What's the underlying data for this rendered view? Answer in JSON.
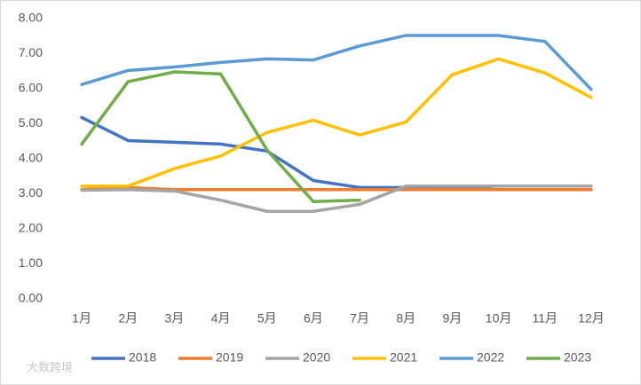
{
  "chart_data": {
    "type": "line",
    "categories": [
      "1月",
      "2月",
      "3月",
      "4月",
      "5月",
      "6月",
      "7月",
      "8月",
      "9月",
      "10月",
      "11月",
      "12月"
    ],
    "series": [
      {
        "name": "2018",
        "color": "#4472c4",
        "values": [
          5.18,
          4.52,
          4.47,
          4.42,
          4.22,
          3.38,
          3.18,
          3.18,
          3.18,
          3.12,
          3.12,
          3.12
        ]
      },
      {
        "name": "2019",
        "color": "#ed7d31",
        "values": [
          3.12,
          3.18,
          3.12,
          3.12,
          3.12,
          3.12,
          3.12,
          3.12,
          3.12,
          3.12,
          3.12,
          3.12
        ]
      },
      {
        "name": "2020",
        "color": "#a5a5a5",
        "values": [
          3.1,
          3.12,
          3.08,
          2.82,
          2.5,
          2.5,
          2.7,
          3.22,
          3.22,
          3.22,
          3.22,
          3.22
        ]
      },
      {
        "name": "2021",
        "color": "#ffc000",
        "values": [
          3.22,
          3.22,
          3.72,
          4.08,
          4.75,
          5.1,
          4.68,
          5.05,
          6.4,
          6.85,
          6.45,
          5.75
        ]
      },
      {
        "name": "2022",
        "color": "#5b9bd5",
        "values": [
          6.12,
          6.52,
          6.62,
          6.75,
          6.85,
          6.82,
          7.22,
          7.52,
          7.52,
          7.52,
          7.35,
          5.98
        ]
      },
      {
        "name": "2023",
        "color": "#70ad47",
        "values": [
          4.42,
          6.2,
          6.48,
          6.42,
          4.25,
          2.78,
          2.82,
          null,
          null,
          null,
          null,
          null
        ]
      }
    ],
    "ylim": [
      0,
      8
    ],
    "yticks": [
      {
        "value": 0,
        "label": "0.00"
      },
      {
        "value": 1,
        "label": "1.00"
      },
      {
        "value": 2,
        "label": "2.00"
      },
      {
        "value": 3,
        "label": "3.00"
      },
      {
        "value": 4,
        "label": "4.00"
      },
      {
        "value": 5,
        "label": "5.00"
      },
      {
        "value": 6,
        "label": "6.00"
      },
      {
        "value": 7,
        "label": "7.00"
      },
      {
        "value": 8,
        "label": "8.00"
      }
    ],
    "grid": false,
    "legend": "bottom",
    "watermark": "大数跨境"
  }
}
